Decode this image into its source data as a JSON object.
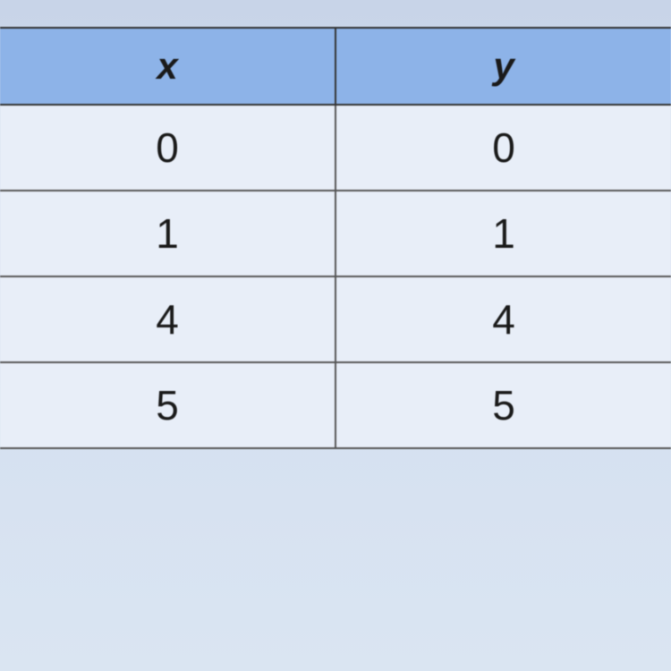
{
  "table": {
    "type": "table",
    "columns": [
      {
        "key": "x",
        "label": "x",
        "width_pct": 50,
        "align": "center"
      },
      {
        "key": "y",
        "label": "y",
        "width_pct": 50,
        "align": "center"
      }
    ],
    "rows": [
      [
        "0",
        "0"
      ],
      [
        "1",
        "1"
      ],
      [
        "4",
        "4"
      ],
      [
        "5",
        "5"
      ]
    ],
    "header_bg_color": "#8db3e8",
    "row_bg_color": "#e8eef8",
    "border_color": "#333333",
    "text_color": "#1a1a1a",
    "header_font_style": "italic",
    "header_font_weight": "bold",
    "header_fontsize": 42,
    "cell_fontsize": 46,
    "background_gradient_top": "#c8d4e8",
    "background_gradient_bottom": "#dae5f2"
  }
}
